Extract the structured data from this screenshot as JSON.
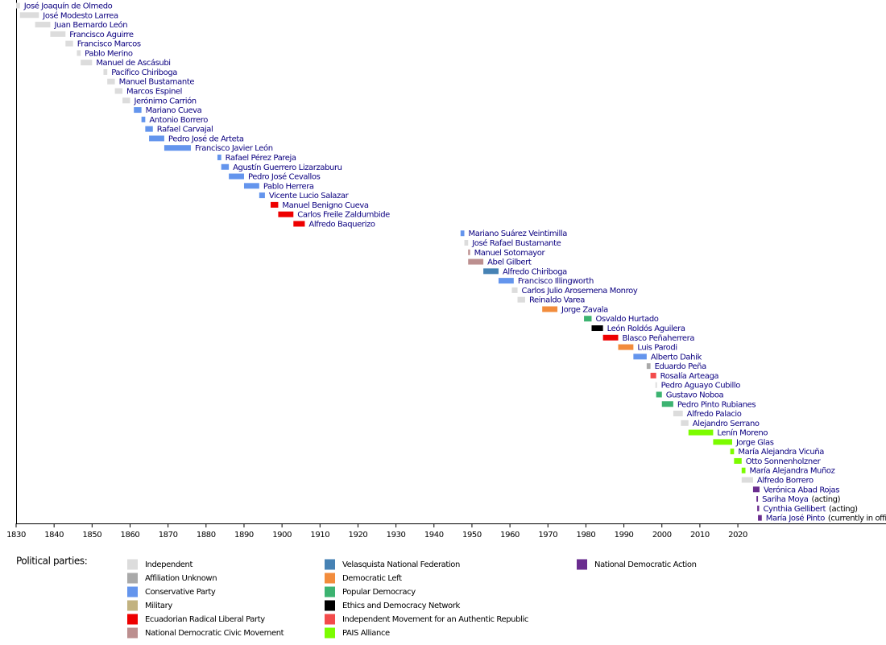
{
  "chart_data": {
    "type": "timeline",
    "xlim": [
      1830,
      2059
    ],
    "xticks": [
      1830,
      1840,
      1850,
      1860,
      1870,
      1880,
      1890,
      1900,
      1910,
      1920,
      1930,
      1940,
      1950,
      1960,
      1970,
      1980,
      1990,
      2000,
      2010,
      2020
    ],
    "legend_title": "Political parties:",
    "legend": [
      {
        "name": "Independent",
        "color": "#dcdcdc"
      },
      {
        "name": "Affiliation Unknown",
        "color": "#a9a9a9"
      },
      {
        "name": "Conservative Party",
        "color": "#6495ed"
      },
      {
        "name": "Military",
        "color": "#c2b280"
      },
      {
        "name": "Ecuadorian Radical Liberal Party",
        "color": "#ee0000"
      },
      {
        "name": "National Democratic Civic Movement",
        "color": "#bc8f8f"
      },
      {
        "name": "Velasquista National Federation",
        "color": "#4682b4"
      },
      {
        "name": "Democratic Left",
        "color": "#f28c3c"
      },
      {
        "name": "Popular Democracy",
        "color": "#3cb371"
      },
      {
        "name": "Ethics and Democracy Network",
        "color": "#000000"
      },
      {
        "name": "Independent Movement for an Authentic Republic",
        "color": "#f34b4b"
      },
      {
        "name": "PAIS Alliance",
        "color": "#7cfc00"
      },
      {
        "name": "National Democratic Action",
        "color": "#6a2d8f"
      }
    ],
    "rows": [
      {
        "name": "José Joaquín de Olmedo",
        "start": 1830,
        "end": 1831,
        "color": "#dcdcdc"
      },
      {
        "name": "José Modesto Larrea",
        "start": 1831,
        "end": 1836,
        "color": "#dcdcdc"
      },
      {
        "name": "Juan Bernardo León",
        "start": 1835,
        "end": 1839,
        "color": "#dcdcdc"
      },
      {
        "name": "Francisco Aguirre",
        "start": 1839,
        "end": 1843,
        "color": "#dcdcdc"
      },
      {
        "name": "Francisco Marcos",
        "start": 1843,
        "end": 1845,
        "color": "#dcdcdc"
      },
      {
        "name": "Pablo Merino",
        "start": 1846,
        "end": 1847,
        "color": "#dcdcdc"
      },
      {
        "name": "Manuel de Ascásubi",
        "start": 1847,
        "end": 1850,
        "color": "#dcdcdc"
      },
      {
        "name": "Pacífico Chiriboga",
        "start": 1853,
        "end": 1854,
        "color": "#dcdcdc"
      },
      {
        "name": "Manuel Bustamante",
        "start": 1854,
        "end": 1856,
        "color": "#dcdcdc"
      },
      {
        "name": "Marcos Espinel",
        "start": 1856,
        "end": 1858,
        "color": "#dcdcdc"
      },
      {
        "name": "Jerónimo Carrión",
        "start": 1858,
        "end": 1860,
        "color": "#dcdcdc"
      },
      {
        "name": "Mariano Cueva",
        "start": 1861,
        "end": 1863,
        "color": "#6495ed"
      },
      {
        "name": "Antonio Borrero",
        "start": 1863,
        "end": 1864,
        "color": "#6495ed"
      },
      {
        "name": "Rafael Carvajal",
        "start": 1864,
        "end": 1866,
        "color": "#6495ed"
      },
      {
        "name": "Pedro José de Arteta",
        "start": 1865,
        "end": 1869,
        "color": "#6495ed"
      },
      {
        "name": "Francisco Javier León",
        "start": 1869,
        "end": 1876,
        "color": "#6495ed"
      },
      {
        "name": "Rafael Pérez Pareja",
        "start": 1883,
        "end": 1884,
        "color": "#6495ed"
      },
      {
        "name": "Agustín Guerrero Lizarzaburu",
        "start": 1884,
        "end": 1886,
        "color": "#6495ed"
      },
      {
        "name": "Pedro José Cevallos",
        "start": 1886,
        "end": 1890,
        "color": "#6495ed"
      },
      {
        "name": "Pablo Herrera",
        "start": 1890,
        "end": 1894,
        "color": "#6495ed"
      },
      {
        "name": "Vicente Lucio Salazar",
        "start": 1894,
        "end": 1895.5,
        "color": "#6495ed"
      },
      {
        "name": "Manuel Benigno Cueva",
        "start": 1897,
        "end": 1899,
        "color": "#ee0000"
      },
      {
        "name": "Carlos Freile Zaldumbide",
        "start": 1899,
        "end": 1903,
        "color": "#ee0000"
      },
      {
        "name": "Alfredo Baquerizo",
        "start": 1903,
        "end": 1906,
        "color": "#ee0000"
      },
      {
        "name": "Mariano Suárez Veintimilla",
        "start": 1947,
        "end": 1948,
        "color": "#6495ed"
      },
      {
        "name": "José Rafael Bustamante",
        "start": 1948,
        "end": 1949,
        "color": "#dcdcdc"
      },
      {
        "name": "Manuel Sotomayor",
        "start": 1949,
        "end": 1949.5,
        "color": "#bc8f8f"
      },
      {
        "name": "Abel Gilbert",
        "start": 1949,
        "end": 1953,
        "color": "#bc8f8f"
      },
      {
        "name": "Alfredo Chiriboga",
        "start": 1953,
        "end": 1957,
        "color": "#4682b4"
      },
      {
        "name": "Francisco Illingworth",
        "start": 1957,
        "end": 1961,
        "color": "#6495ed"
      },
      {
        "name": "Carlos Julio Arosemena Monroy",
        "start": 1960.5,
        "end": 1962,
        "color": "#dcdcdc"
      },
      {
        "name": "Reinaldo Varea",
        "start": 1962,
        "end": 1964,
        "color": "#dcdcdc"
      },
      {
        "name": "Jorge Zavala",
        "start": 1968.5,
        "end": 1972.5,
        "color": "#f28c3c"
      },
      {
        "name": "Osvaldo Hurtado",
        "start": 1979.5,
        "end": 1981.5,
        "color": "#3cb371"
      },
      {
        "name": "León Roldós Aguilera",
        "start": 1981.5,
        "end": 1984.5,
        "color": "#000000"
      },
      {
        "name": "Blasco Peñaherrera",
        "start": 1984.5,
        "end": 1988.5,
        "color": "#ee0000"
      },
      {
        "name": "Luis Parodi",
        "start": 1988.5,
        "end": 1992.5,
        "color": "#f28c3c"
      },
      {
        "name": "Alberto Dahik",
        "start": 1992.5,
        "end": 1996,
        "color": "#6495ed"
      },
      {
        "name": "Eduardo Peña",
        "start": 1996,
        "end": 1997,
        "color": "#a9a9a9"
      },
      {
        "name": "Rosalía Arteaga",
        "start": 1997,
        "end": 1998.5,
        "color": "#f34b4b"
      },
      {
        "name": "Pedro Aguayo Cubillo",
        "start": 1998.3,
        "end": 1998.7,
        "color": "#dcdcdc"
      },
      {
        "name": "Gustavo Noboa",
        "start": 1998.5,
        "end": 2000,
        "color": "#3cb371"
      },
      {
        "name": "Pedro Pinto Rubianes",
        "start": 2000,
        "end": 2003,
        "color": "#3cb371"
      },
      {
        "name": "Alfredo Palacio",
        "start": 2003,
        "end": 2005.5,
        "color": "#dcdcdc"
      },
      {
        "name": "Alejandro Serrano",
        "start": 2005,
        "end": 2007,
        "color": "#dcdcdc"
      },
      {
        "name": "Lenín Moreno",
        "start": 2007,
        "end": 2013.5,
        "color": "#7cfc00"
      },
      {
        "name": "Jorge Glas",
        "start": 2013.5,
        "end": 2018.5,
        "color": "#7cfc00"
      },
      {
        "name": "María Alejandra Vicuña",
        "start": 2018,
        "end": 2019,
        "color": "#7cfc00"
      },
      {
        "name": "Otto Sonnenholzner",
        "start": 2019,
        "end": 2021,
        "color": "#7cfc00"
      },
      {
        "name": "María Alejandra Muñoz",
        "start": 2021,
        "end": 2022,
        "color": "#7cfc00"
      },
      {
        "name": "Alfredo Borrero",
        "start": 2021,
        "end": 2024,
        "color": "#dcdcdc"
      },
      {
        "name": "Verónica Abad Rojas",
        "start": 2024,
        "end": 2025.7,
        "color": "#6a2d8f"
      },
      {
        "name": "Sariha Moya",
        "note": "(acting)",
        "start": 2024.9,
        "end": 2025.3,
        "color": "#6a2d8f"
      },
      {
        "name": "Cynthia Gellibert",
        "note": "(acting)",
        "start": 2025.1,
        "end": 2025.6,
        "color": "#6a2d8f"
      },
      {
        "name": "María José Pinto",
        "note": "(currently in office)",
        "start": 2025.3,
        "end": 2026.3,
        "color": "#6a2d8f"
      }
    ]
  }
}
